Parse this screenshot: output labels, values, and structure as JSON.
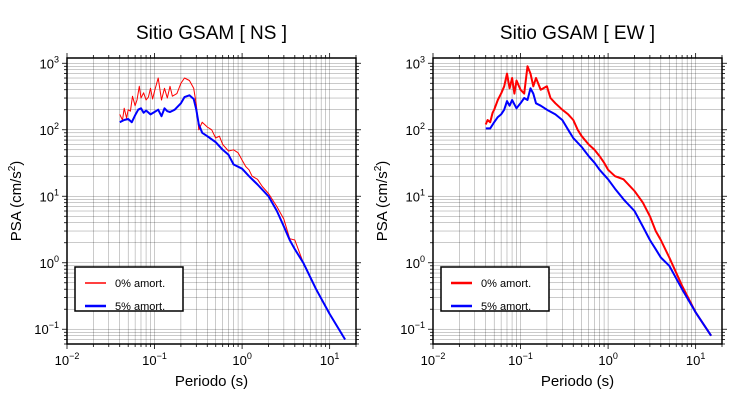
{
  "chart_data": [
    {
      "type": "line",
      "title": "Sitio GSAM [ NS ]",
      "xlabel": "Periodo (s)",
      "ylabel_main": "PSA (cm/s",
      "ylabel_exp": "2",
      "ylabel_close": ")",
      "x_scale": "log",
      "y_scale": "log",
      "xlim": [
        0.01,
        20
      ],
      "ylim": [
        0.06,
        1200
      ],
      "grid": true,
      "legend_position": "bottom-left",
      "x_ticks": [
        {
          "value": 0.01,
          "base": "10",
          "exp": "−2"
        },
        {
          "value": 0.1,
          "base": "10",
          "exp": "−1"
        },
        {
          "value": 1,
          "base": "10",
          "exp": "0"
        },
        {
          "value": 10,
          "base": "10",
          "exp": "1"
        }
      ],
      "y_ticks": [
        {
          "value": 0.1,
          "base": "10",
          "exp": "−1"
        },
        {
          "value": 1,
          "base": "10",
          "exp": "0"
        },
        {
          "value": 10,
          "base": "10",
          "exp": "1"
        },
        {
          "value": 100,
          "base": "10",
          "exp": "2"
        },
        {
          "value": 1000,
          "base": "10",
          "exp": "3"
        }
      ],
      "series": [
        {
          "name": "0% amort.",
          "color": "#ff0000",
          "width": 1,
          "x": [
            0.04,
            0.043,
            0.045,
            0.048,
            0.05,
            0.053,
            0.056,
            0.06,
            0.063,
            0.067,
            0.07,
            0.075,
            0.08,
            0.085,
            0.09,
            0.095,
            0.1,
            0.11,
            0.12,
            0.13,
            0.14,
            0.15,
            0.16,
            0.18,
            0.2,
            0.22,
            0.25,
            0.28,
            0.3,
            0.32,
            0.35,
            0.4,
            0.45,
            0.5,
            0.55,
            0.6,
            0.7,
            0.8,
            0.9,
            1.0,
            1.1,
            1.2,
            1.3,
            1.5,
            1.7,
            2.0,
            2.5,
            3.0,
            3.5,
            4.0,
            5.0,
            7.0,
            10.0,
            15.0
          ],
          "y": [
            170,
            140,
            210,
            150,
            200,
            190,
            320,
            230,
            280,
            450,
            300,
            360,
            280,
            310,
            420,
            290,
            380,
            600,
            280,
            420,
            300,
            450,
            320,
            350,
            500,
            600,
            550,
            420,
            240,
            100,
            130,
            110,
            100,
            75,
            80,
            60,
            48,
            50,
            45,
            35,
            28,
            25,
            20,
            18,
            14,
            11,
            7,
            4.5,
            2.3,
            2.2,
            1.0,
            0.4,
            0.17,
            0.07
          ]
        },
        {
          "name": "5% amort.",
          "color": "#0000ff",
          "width": 2,
          "x": [
            0.04,
            0.045,
            0.05,
            0.055,
            0.06,
            0.065,
            0.07,
            0.075,
            0.08,
            0.09,
            0.1,
            0.11,
            0.12,
            0.13,
            0.14,
            0.15,
            0.17,
            0.2,
            0.22,
            0.25,
            0.28,
            0.3,
            0.32,
            0.35,
            0.4,
            0.5,
            0.6,
            0.7,
            0.8,
            1.0,
            1.2,
            1.5,
            2.0,
            2.5,
            3.0,
            3.5,
            4.0,
            5.0,
            7.0,
            10.0,
            15.0
          ],
          "y": [
            130,
            140,
            145,
            130,
            165,
            200,
            210,
            180,
            195,
            170,
            185,
            200,
            160,
            210,
            190,
            185,
            200,
            250,
            310,
            330,
            290,
            200,
            120,
            90,
            80,
            65,
            50,
            42,
            30,
            26,
            20,
            15,
            10,
            6,
            3.5,
            2.2,
            1.6,
            1.0,
            0.4,
            0.17,
            0.07
          ]
        }
      ]
    },
    {
      "type": "line",
      "title": "Sitio GSAM [ EW ]",
      "xlabel": "Periodo (s)",
      "ylabel_main": "PSA (cm/s",
      "ylabel_exp": "2",
      "ylabel_close": ")",
      "x_scale": "log",
      "y_scale": "log",
      "xlim": [
        0.01,
        20
      ],
      "ylim": [
        0.06,
        1200
      ],
      "grid": true,
      "legend_position": "bottom-left",
      "x_ticks": [
        {
          "value": 0.01,
          "base": "10",
          "exp": "−2"
        },
        {
          "value": 0.1,
          "base": "10",
          "exp": "−1"
        },
        {
          "value": 1,
          "base": "10",
          "exp": "0"
        },
        {
          "value": 10,
          "base": "10",
          "exp": "1"
        }
      ],
      "y_ticks": [
        {
          "value": 0.1,
          "base": "10",
          "exp": "−1"
        },
        {
          "value": 1,
          "base": "10",
          "exp": "0"
        },
        {
          "value": 10,
          "base": "10",
          "exp": "1"
        },
        {
          "value": 100,
          "base": "10",
          "exp": "2"
        },
        {
          "value": 1000,
          "base": "10",
          "exp": "3"
        }
      ],
      "series": [
        {
          "name": "0% amort.",
          "color": "#ff0000",
          "width": 2,
          "x": [
            0.04,
            0.042,
            0.045,
            0.048,
            0.05,
            0.055,
            0.06,
            0.065,
            0.07,
            0.075,
            0.08,
            0.085,
            0.09,
            0.1,
            0.11,
            0.12,
            0.13,
            0.14,
            0.15,
            0.17,
            0.2,
            0.22,
            0.25,
            0.3,
            0.35,
            0.4,
            0.45,
            0.5,
            0.6,
            0.7,
            0.8,
            0.9,
            1.0,
            1.2,
            1.5,
            2.0,
            2.5,
            3.0,
            3.5,
            4.0,
            5.0,
            7.0,
            10.0,
            15.0
          ],
          "y": [
            120,
            140,
            130,
            180,
            200,
            280,
            350,
            450,
            700,
            420,
            600,
            350,
            550,
            400,
            350,
            900,
            700,
            450,
            600,
            400,
            450,
            300,
            250,
            200,
            170,
            140,
            100,
            80,
            60,
            50,
            40,
            32,
            25,
            20,
            18,
            12,
            8,
            5,
            3,
            2.2,
            1.2,
            0.45,
            0.18,
            0.08
          ]
        },
        {
          "name": "5% amort.",
          "color": "#0000ff",
          "width": 2,
          "x": [
            0.04,
            0.045,
            0.05,
            0.055,
            0.06,
            0.065,
            0.07,
            0.075,
            0.08,
            0.09,
            0.1,
            0.11,
            0.12,
            0.13,
            0.14,
            0.15,
            0.17,
            0.2,
            0.25,
            0.3,
            0.35,
            0.4,
            0.5,
            0.6,
            0.7,
            0.8,
            1.0,
            1.2,
            1.5,
            2.0,
            2.5,
            3.0,
            3.5,
            4.0,
            5.0,
            7.0,
            10.0,
            15.0
          ],
          "y": [
            105,
            105,
            130,
            155,
            170,
            200,
            270,
            230,
            280,
            210,
            250,
            300,
            280,
            420,
            350,
            250,
            230,
            200,
            170,
            140,
            100,
            75,
            55,
            40,
            32,
            25,
            18,
            13,
            9,
            6,
            3.5,
            2.2,
            1.6,
            1.2,
            0.9,
            0.4,
            0.18,
            0.08
          ]
        }
      ]
    }
  ]
}
